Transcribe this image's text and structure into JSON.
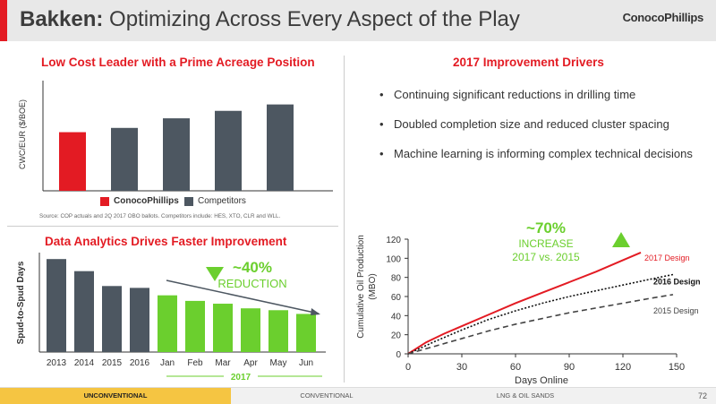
{
  "title": {
    "bold": "Bakken:",
    "rest": " Optimizing Across Every Aspect of the Play"
  },
  "logo": {
    "text_a": "Conoco",
    "text_b": "Phillips"
  },
  "cost_panel": {
    "title": "Low Cost Leader with a Prime Acreage Position",
    "ylabel": "CWC/EUR ($/BOE)",
    "legend_cop_a": "Conoco",
    "legend_cop_b": "Phillips",
    "legend_competitors": "Competitors",
    "source": "Source: COP actuals and 2Q 2017 OBO ballots. Competitors include: HES, XTO, CLR and WLL.",
    "colors": {
      "cop": "#e31b23",
      "competitor": "#4d5761"
    }
  },
  "improvement_panel": {
    "title": "2017 Improvement Drivers",
    "bullets": [
      "Continuing significant reductions in drilling time",
      "Doubled completion size and reduced cluster spacing",
      "Machine learning is informing complex technical decisions"
    ]
  },
  "analytics_panel": {
    "title": "Data Analytics Drives Faster Improvement",
    "ylabel": "Spud-to-Spud Days",
    "callout_pct": "~40%",
    "callout_word": "REDUCTION",
    "bracket_label": "2017"
  },
  "production_panel": {
    "callout_pct": "~70%",
    "callout_line1": "INCREASE",
    "callout_line2": "2017 vs. 2015",
    "xlabel": "Days Online",
    "ylabel_line1": "Cumulative Oil Production",
    "ylabel_line2": "(MBO)"
  },
  "chart_data": [
    {
      "type": "bar",
      "title": "Low Cost Leader with a Prime Acreage Position",
      "ylabel": "CWC/EUR ($/BOE)",
      "categories": [
        "",
        "",
        "",
        "",
        ""
      ],
      "values": [
        0.55,
        0.59,
        0.68,
        0.75,
        0.81
      ],
      "bar_colors": [
        "#e31b23",
        "#4d5761",
        "#4d5761",
        "#4d5761",
        "#4d5761"
      ],
      "ylim": [
        0,
        1
      ],
      "legend": [
        "ConocoPhillips",
        "Competitors"
      ]
    },
    {
      "type": "bar",
      "title": "Data Analytics Drives Faster Improvement",
      "ylabel": "Spud-to-Spud Days",
      "categories": [
        "2013",
        "2014",
        "2015",
        "2016",
        "Jan",
        "Feb",
        "Mar",
        "Apr",
        "May",
        "Jun"
      ],
      "values": [
        1.0,
        0.87,
        0.71,
        0.69,
        0.61,
        0.55,
        0.52,
        0.47,
        0.45,
        0.41
      ],
      "bar_colors": [
        "#4d5761",
        "#4d5761",
        "#4d5761",
        "#4d5761",
        "#6bcf2e",
        "#6bcf2e",
        "#6bcf2e",
        "#6bcf2e",
        "#6bcf2e",
        "#6bcf2e"
      ],
      "ylim": [
        0,
        1.05
      ]
    },
    {
      "type": "line",
      "xlabel": "Days Online",
      "ylabel": "Cumulative Oil Production (MBO)",
      "xlim": [
        0,
        150
      ],
      "ylim": [
        0,
        120
      ],
      "xticks": [
        0,
        30,
        60,
        90,
        120,
        150
      ],
      "yticks": [
        0,
        20,
        40,
        60,
        80,
        100,
        120
      ],
      "series": [
        {
          "name": "2017 Design",
          "color": "#e31b23",
          "dash": "solid",
          "x": [
            0,
            10,
            20,
            30,
            45,
            60,
            75,
            90,
            105,
            120,
            130
          ],
          "y": [
            0,
            12,
            21,
            29,
            41,
            53,
            64,
            75,
            86,
            98,
            106
          ]
        },
        {
          "name": "2016 Design",
          "color": "#111111",
          "dash": "dotted",
          "x": [
            0,
            15,
            30,
            45,
            60,
            75,
            90,
            105,
            120,
            135,
            148
          ],
          "y": [
            0,
            13,
            25,
            36,
            45,
            53,
            60,
            66,
            72,
            78,
            83
          ]
        },
        {
          "name": "2015 Design",
          "color": "#444444",
          "dash": "dashed",
          "x": [
            0,
            15,
            30,
            45,
            60,
            75,
            90,
            105,
            120,
            135,
            148
          ],
          "y": [
            0,
            8,
            16,
            24,
            31,
            37,
            43,
            48,
            53,
            58,
            62
          ]
        }
      ]
    }
  ],
  "footer": {
    "tabs": [
      "UNCONVENTIONAL",
      "CONVENTIONAL",
      "LNG & OIL SANDS"
    ],
    "page": "72"
  }
}
